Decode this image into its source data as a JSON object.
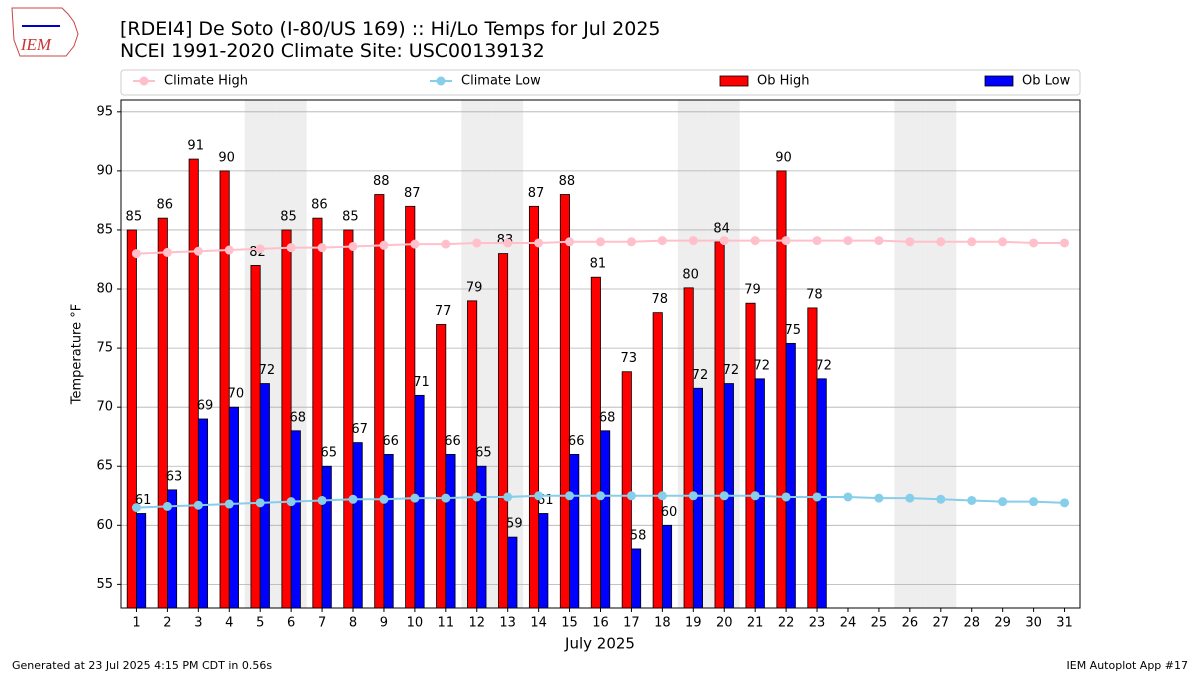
{
  "logo_text": "IEM",
  "footer_left": "Generated at 23 Jul 2025 4:15 PM CDT in 0.56s",
  "footer_right": "IEM Autoplot App #17",
  "chart_data": {
    "type": "bar",
    "title": "[RDEI4] De Soto (I-80/US 169) :: Hi/Lo Temps for Jul 2025",
    "subtitle": "NCEI 1991-2020 Climate Site: USC00139132",
    "x_label": "July 2025",
    "y_label": "Temperature °F",
    "x": [
      1,
      2,
      3,
      4,
      5,
      6,
      7,
      8,
      9,
      10,
      11,
      12,
      13,
      14,
      15,
      16,
      17,
      18,
      19,
      20,
      21,
      22,
      23,
      24,
      25,
      26,
      27,
      28,
      29,
      30,
      31
    ],
    "xlim": [
      0.5,
      31.5
    ],
    "xticks": [
      1,
      2,
      3,
      4,
      5,
      6,
      7,
      8,
      9,
      10,
      11,
      12,
      13,
      14,
      15,
      16,
      17,
      18,
      19,
      20,
      21,
      22,
      23,
      24,
      25,
      26,
      27,
      28,
      29,
      30,
      31
    ],
    "ylim": [
      53,
      96
    ],
    "yticks": [
      55,
      60,
      65,
      70,
      75,
      80,
      85,
      90,
      95
    ],
    "grid": true,
    "legend": "top",
    "shaded_days": [
      5,
      6,
      12,
      13,
      19,
      20,
      26,
      27
    ],
    "shade_color": "#eeeeee",
    "series": [
      {
        "name": "Climate High",
        "type": "line",
        "color": "#ffc0cb",
        "values": [
          83.0,
          83.1,
          83.2,
          83.3,
          83.4,
          83.5,
          83.5,
          83.6,
          83.7,
          83.8,
          83.8,
          83.9,
          83.9,
          83.9,
          84.0,
          84.0,
          84.0,
          84.1,
          84.1,
          84.1,
          84.1,
          84.1,
          84.1,
          84.1,
          84.1,
          84.0,
          84.0,
          84.0,
          84.0,
          83.9,
          83.9
        ]
      },
      {
        "name": "Climate Low",
        "type": "line",
        "color": "#87ceeb",
        "values": [
          61.5,
          61.6,
          61.7,
          61.8,
          61.9,
          62.0,
          62.1,
          62.2,
          62.2,
          62.3,
          62.3,
          62.4,
          62.4,
          62.5,
          62.5,
          62.5,
          62.5,
          62.5,
          62.5,
          62.5,
          62.5,
          62.4,
          62.4,
          62.4,
          62.3,
          62.3,
          62.2,
          62.1,
          62.0,
          62.0,
          61.9
        ]
      },
      {
        "name": "Ob High",
        "type": "bar",
        "color": "#ff0000",
        "offset": -1,
        "values": [
          85,
          86,
          91,
          90,
          82,
          85,
          86,
          85,
          88,
          87,
          77,
          79,
          83,
          87,
          88,
          81,
          73,
          78,
          80.1,
          84,
          78.8,
          90,
          78.4,
          null,
          null,
          null,
          null,
          null,
          null,
          null,
          null
        ],
        "value_labels": [
          "85",
          "86",
          "91",
          "90",
          "82",
          "85",
          "86",
          "85",
          "88",
          "87",
          "77",
          "79",
          "83",
          "87",
          "88",
          "81",
          "73",
          "78",
          "80",
          "84",
          "79",
          "90",
          "78",
          null,
          null,
          null,
          null,
          null,
          null,
          null,
          null
        ]
      },
      {
        "name": "Ob Low",
        "type": "bar",
        "color": "#0000ff",
        "offset": 1,
        "values": [
          61,
          63,
          69,
          70,
          72,
          68,
          65,
          67,
          66,
          71,
          66,
          65,
          59,
          61,
          66,
          68,
          58,
          60,
          71.6,
          72,
          72.4,
          75.4,
          72.4,
          null,
          null,
          null,
          null,
          null,
          null,
          null,
          null
        ],
        "value_labels": [
          "61",
          "63",
          "69",
          "70",
          "72",
          "68",
          "65",
          "67",
          "66",
          "71",
          "66",
          "65",
          "59",
          "61",
          "66",
          "68",
          "58",
          "60",
          "72",
          "72",
          "72",
          "75",
          "72",
          null,
          null,
          null,
          null,
          null,
          null,
          null,
          null
        ]
      }
    ]
  }
}
